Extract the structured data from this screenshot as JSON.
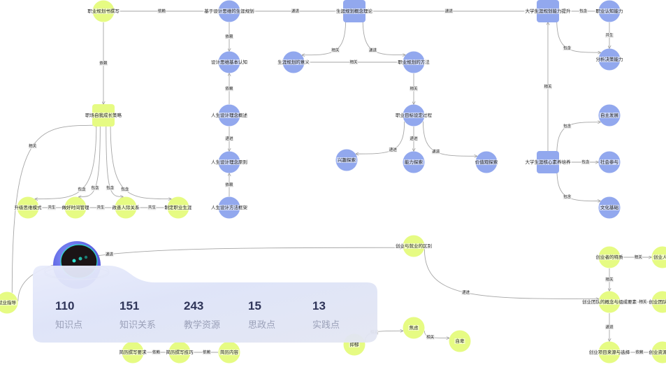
{
  "colors": {
    "blue_node": "#92a8ee",
    "yellow_node": "#e6fb83",
    "edge": "#a6a6a6"
  },
  "nodes": [
    {
      "id": "n1",
      "label": "职业规划书撰写",
      "type": "yellow"
    },
    {
      "id": "n2",
      "label": "基于设计思维的生涯规划",
      "type": "blue"
    },
    {
      "id": "n3",
      "label": "生涯规划概念理论",
      "type": "blue-rect"
    },
    {
      "id": "n4",
      "label": "大学生涯规划能力提升",
      "type": "blue-rect"
    },
    {
      "id": "n5",
      "label": "职业认知能力",
      "type": "blue"
    },
    {
      "id": "n6",
      "label": "分析决策能力",
      "type": "blue"
    },
    {
      "id": "n7",
      "label": "生涯规划的意义",
      "type": "blue"
    },
    {
      "id": "n8",
      "label": "设计思维基本认知",
      "type": "blue"
    },
    {
      "id": "n9",
      "label": "职业规划的方法",
      "type": "blue"
    },
    {
      "id": "n10",
      "label": "职场自我成长策略",
      "type": "yellow-rect"
    },
    {
      "id": "n11",
      "label": "人生设计理念概述",
      "type": "blue"
    },
    {
      "id": "n12",
      "label": "人生设计理念原则",
      "type": "blue"
    },
    {
      "id": "n13",
      "label": "人生设计方法框架",
      "type": "blue"
    },
    {
      "id": "n14",
      "label": "升级思维模式",
      "type": "yellow"
    },
    {
      "id": "n15",
      "label": "做好时间管理",
      "type": "yellow"
    },
    {
      "id": "n16",
      "label": "改善人际关系",
      "type": "yellow"
    },
    {
      "id": "n17",
      "label": "制定职业生涯",
      "type": "yellow"
    },
    {
      "id": "n18",
      "label": "职业目标设定过程",
      "type": "blue"
    },
    {
      "id": "n19",
      "label": "兴趣探索",
      "type": "blue"
    },
    {
      "id": "n20",
      "label": "能力探索",
      "type": "blue"
    },
    {
      "id": "n21",
      "label": "价值观探索",
      "type": "blue"
    },
    {
      "id": "n22",
      "label": "大学生涯核心素养培养",
      "type": "blue-rect"
    },
    {
      "id": "n23",
      "label": "自主发展",
      "type": "blue"
    },
    {
      "id": "n24",
      "label": "社会参与",
      "type": "blue"
    },
    {
      "id": "n25",
      "label": "文化基础",
      "type": "blue"
    },
    {
      "id": "n26",
      "label": "创业与就业的区别",
      "type": "yellow"
    },
    {
      "id": "n27",
      "label": "创业者的特质",
      "type": "yellow"
    },
    {
      "id": "n28",
      "label": "创业人物",
      "type": "yellow"
    },
    {
      "id": "n29",
      "label": "创业团队的概念与组成要素",
      "type": "yellow"
    },
    {
      "id": "n30",
      "label": "创业团队组建",
      "type": "yellow"
    },
    {
      "id": "n31",
      "label": "创业项目来源与选择",
      "type": "yellow"
    },
    {
      "id": "n32",
      "label": "创业资源整合",
      "type": "yellow"
    },
    {
      "id": "n33",
      "label": "焦虑",
      "type": "yellow"
    },
    {
      "id": "n34",
      "label": "自卑",
      "type": "yellow"
    },
    {
      "id": "n35",
      "label": "抑郁",
      "type": "yellow"
    },
    {
      "id": "n36",
      "label": "简历撰写要求",
      "type": "yellow"
    },
    {
      "id": "n37",
      "label": "简历撰写技巧",
      "type": "yellow"
    },
    {
      "id": "n38",
      "label": "简历内容",
      "type": "yellow"
    },
    {
      "id": "n39",
      "label": "就业指导",
      "type": "yellow"
    }
  ],
  "edges": [
    {
      "from": "n1",
      "to": "n2",
      "label": "依赖"
    },
    {
      "from": "n2",
      "to": "n3",
      "label": "递进"
    },
    {
      "from": "n3",
      "to": "n4",
      "label": "递进"
    },
    {
      "from": "n4",
      "to": "n5",
      "label": "包含"
    },
    {
      "from": "n4",
      "to": "n6",
      "label": "包含"
    },
    {
      "from": "n5",
      "to": "n6",
      "label": "共生"
    },
    {
      "from": "n3",
      "to": "n7",
      "label": "相关"
    },
    {
      "from": "n3",
      "to": "n9",
      "label": "递进"
    },
    {
      "from": "n7",
      "to": "n9",
      "label": "相关"
    },
    {
      "from": "n2",
      "to": "n8",
      "label": "依赖"
    },
    {
      "from": "n11",
      "to": "n8",
      "label": "依赖"
    },
    {
      "from": "n11",
      "to": "n12",
      "label": "递进"
    },
    {
      "from": "n13",
      "to": "n12",
      "label": "依赖"
    },
    {
      "from": "n1",
      "to": "n10",
      "label": "依赖"
    },
    {
      "from": "n39",
      "to": "n10",
      "label": "相关"
    },
    {
      "from": "n10",
      "to": "n14",
      "label": "包含"
    },
    {
      "from": "n10",
      "to": "n15",
      "label": "包含"
    },
    {
      "from": "n10",
      "to": "n16",
      "label": "包含"
    },
    {
      "from": "n10",
      "to": "n17",
      "label": "包含"
    },
    {
      "from": "n14",
      "to": "n15",
      "label": "共生"
    },
    {
      "from": "n15",
      "to": "n16",
      "label": "共生"
    },
    {
      "from": "n16",
      "to": "n17",
      "label": "共生"
    },
    {
      "from": "n9",
      "to": "n18",
      "label": "相关"
    },
    {
      "from": "n18",
      "to": "n19",
      "label": "递进"
    },
    {
      "from": "n18",
      "to": "n20",
      "label": "递进"
    },
    {
      "from": "n18",
      "to": "n21",
      "label": "递进"
    },
    {
      "from": "n22",
      "to": "n4",
      "label": "相关"
    },
    {
      "from": "n22",
      "to": "n23",
      "label": "包含"
    },
    {
      "from": "n22",
      "to": "n24",
      "label": "包含"
    },
    {
      "from": "n22",
      "to": "n25",
      "label": "包含"
    },
    {
      "from": "n26",
      "to": "n29",
      "label": "递进"
    },
    {
      "from": "n39",
      "to": "n26",
      "label": "递进"
    },
    {
      "from": "n27",
      "to": "n28",
      "label": "相关"
    },
    {
      "from": "n27",
      "to": "n29",
      "label": "相关"
    },
    {
      "from": "n29",
      "to": "n30",
      "label": "相关"
    },
    {
      "from": "n29",
      "to": "n31",
      "label": "递进"
    },
    {
      "from": "n31",
      "to": "n32",
      "label": "依赖"
    },
    {
      "from": "n35",
      "to": "n33",
      "label": "相关"
    },
    {
      "from": "n33",
      "to": "n34",
      "label": "相关"
    },
    {
      "from": "n38",
      "to": "n37",
      "label": "依赖"
    },
    {
      "from": "n37",
      "to": "n36",
      "label": "依赖"
    }
  ],
  "stats": [
    {
      "value": "110",
      "label": "知识点"
    },
    {
      "value": "151",
      "label": "知识关系"
    },
    {
      "value": "243",
      "label": "教学资源"
    },
    {
      "value": "15",
      "label": "思政点"
    },
    {
      "value": "13",
      "label": "实践点"
    }
  ]
}
